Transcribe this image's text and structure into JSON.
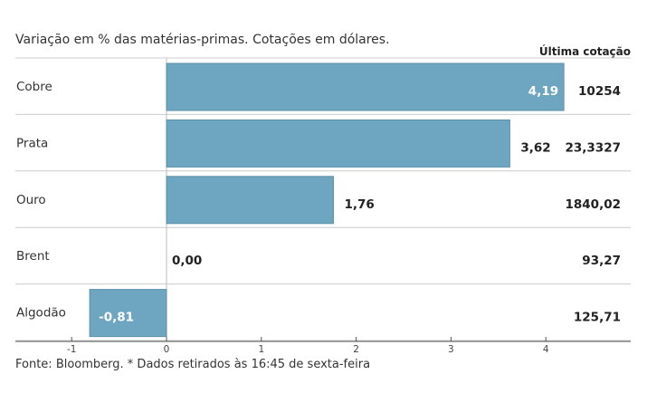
{
  "subtitle": "Variação em % das matérias-primas. Cotações em dólares.",
  "last_header": "Última cotação",
  "source": "Fonte: Bloomberg.  * Dados retirados às 16:45 de sexta-feira",
  "colors": {
    "bar": "#6ea5c0",
    "bar_stroke": "#5a8fa9",
    "grid": "#cccccc",
    "axis": "#555555"
  },
  "chart_data": {
    "type": "bar",
    "orientation": "horizontal",
    "title": "Variação em % das matérias-primas. Cotações em dólares.",
    "categories": [
      "Cobre",
      "Prata",
      "Ouro",
      "Brent",
      "Algodão"
    ],
    "values": [
      4.19,
      3.62,
      1.76,
      0.0,
      -0.81
    ],
    "value_labels": [
      "4,19",
      "3,62",
      "1,76",
      "0,00",
      "-0,81"
    ],
    "last_quote": [
      "10254",
      "23,3327",
      "1840,02",
      "93,27",
      "125,71"
    ],
    "xlim": [
      -1.25,
      4.75
    ],
    "xticks": [
      -1,
      0,
      1,
      2,
      3,
      4
    ],
    "xtick_labels": [
      "-1",
      "0",
      "1",
      "2",
      "3",
      "4"
    ],
    "grid": "horizontal row separators"
  }
}
